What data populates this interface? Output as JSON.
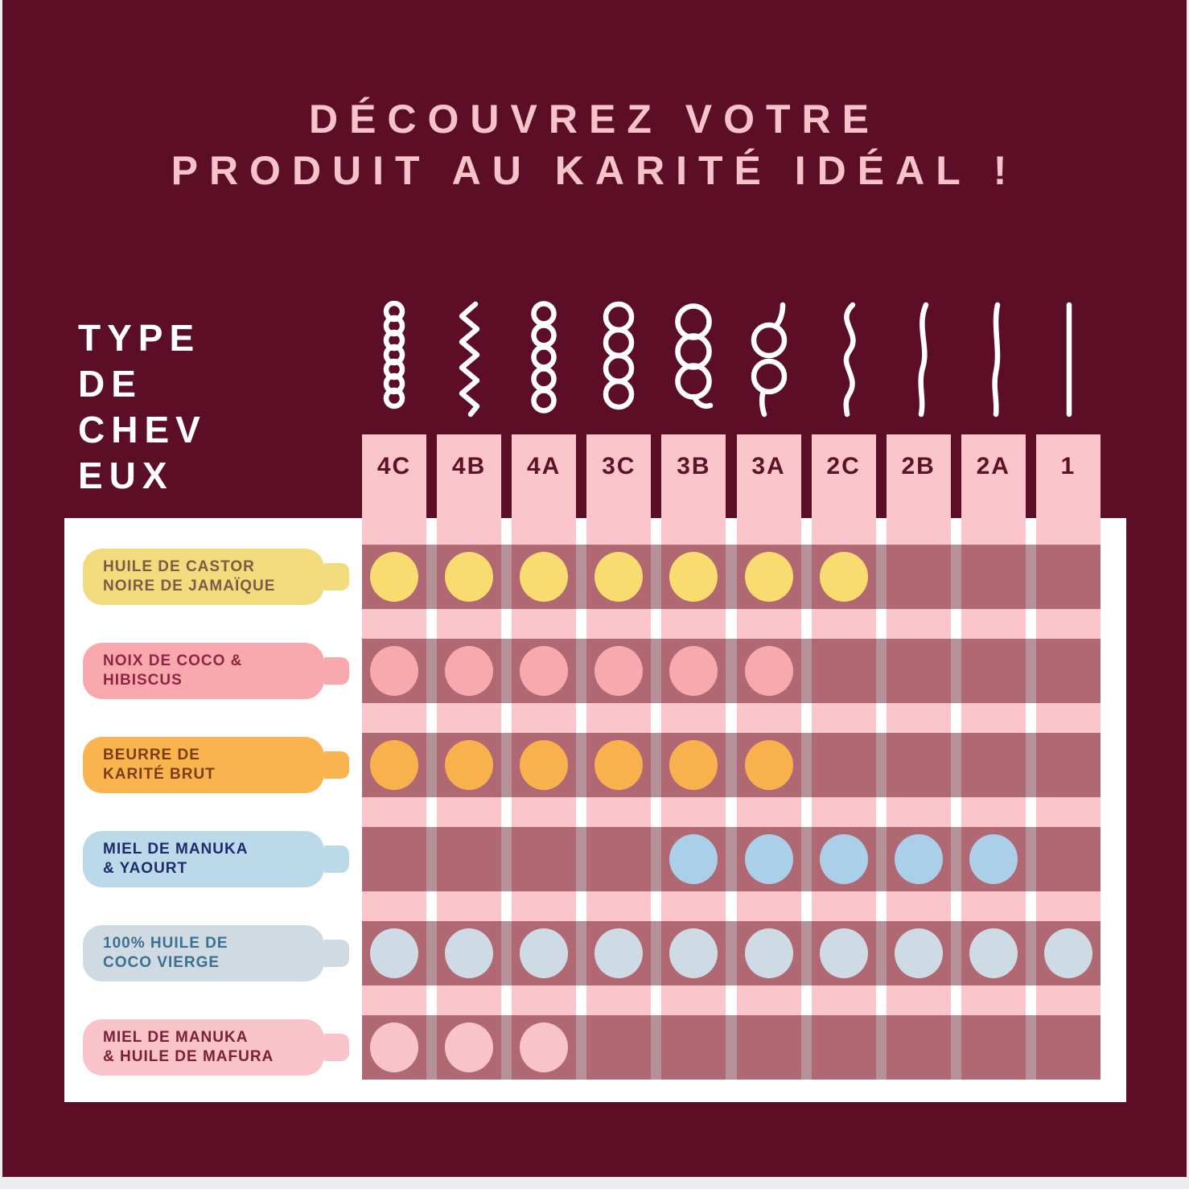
{
  "title": {
    "line1": "DÉCOUVREZ VOTRE",
    "line2": "PRODUIT AU KARITÉ IDÉAL !"
  },
  "axis_label": [
    "TYPE",
    "DE",
    "CHEV",
    "EUX"
  ],
  "columns": [
    {
      "label": "4C",
      "curl": "coil-tight"
    },
    {
      "label": "4B",
      "curl": "zigzag"
    },
    {
      "label": "4A",
      "curl": "coil-small-loops"
    },
    {
      "label": "3C",
      "curl": "curl-medium-loops"
    },
    {
      "label": "3B",
      "curl": "curl-large-loops"
    },
    {
      "label": "3A",
      "curl": "curl-loose-loops"
    },
    {
      "label": "2C",
      "curl": "wave-strong"
    },
    {
      "label": "2B",
      "curl": "wave-medium"
    },
    {
      "label": "2A",
      "curl": "wave-light"
    },
    {
      "label": "1",
      "curl": "straight"
    }
  ],
  "rows": [
    {
      "label_line1": "HUILE DE CASTOR",
      "label_line2": "NOIRE DE JAMAÏQUE",
      "colors": {
        "bottle": "#F1DB7D",
        "text": "#7D5C46",
        "dot": "#F8DC6F"
      },
      "cells": [
        1,
        1,
        1,
        1,
        1,
        1,
        1,
        0,
        0,
        0
      ]
    },
    {
      "label_line1": "NOIX DE COCO &",
      "label_line2": "HIBISCUS",
      "colors": {
        "bottle": "#F9A9AE",
        "text": "#8E2544",
        "dot": "#F7A9AD"
      },
      "cells": [
        1,
        1,
        1,
        1,
        1,
        1,
        0,
        0,
        0,
        0
      ]
    },
    {
      "label_line1": "BEURRE DE",
      "label_line2": "KARITÉ BRUT",
      "colors": {
        "bottle": "#F9B450",
        "text": "#7C3D12",
        "dot": "#F9B14E"
      },
      "cells": [
        1,
        1,
        1,
        1,
        1,
        1,
        0,
        0,
        0,
        0
      ]
    },
    {
      "label_line1": "MIEL DE MANUKA",
      "label_line2": "& YAOURT",
      "colors": {
        "bottle": "#BCD9EA",
        "text": "#202A6C",
        "dot": "#ABCFE8"
      },
      "cells": [
        0,
        0,
        0,
        0,
        1,
        1,
        1,
        1,
        1,
        0
      ]
    },
    {
      "label_line1": "100% HUILE DE",
      "label_line2": "COCO VIERGE",
      "colors": {
        "bottle": "#D0DAE3",
        "text": "#3A7090",
        "dot": "#CFDBE4"
      },
      "cells": [
        1,
        1,
        1,
        1,
        1,
        1,
        1,
        1,
        1,
        1
      ]
    },
    {
      "label_line1": "MIEL DE MANUKA",
      "label_line2": "& HUILE DE MAFURA",
      "colors": {
        "bottle": "#F9C3CA",
        "text": "#7A2039",
        "dot": "#F9C3CA"
      },
      "cells": [
        1,
        1,
        1,
        0,
        0,
        0,
        0,
        0,
        0,
        0
      ]
    }
  ],
  "colors": {
    "background": "#5C0E27",
    "page_edge": "#EDEDEF",
    "title_text": "#F6C3CB",
    "axis_text": "#FFFFFF",
    "card": "#FFFFFF",
    "column_pink": "#FAC6CC",
    "column_label_text": "#5C1228",
    "band_over_white": "#B79199",
    "band_over_pink": "#B06873",
    "curl_icon": "#FFFFFF"
  },
  "chart_data": {
    "type": "table",
    "title": "DÉCOUVREZ VOTRE PRODUIT AU KARITÉ IDÉAL !",
    "x_axis_label": "TYPE DE CHEVEUX",
    "x_categories": [
      "4C",
      "4B",
      "4A",
      "3C",
      "3B",
      "3A",
      "2C",
      "2B",
      "2A",
      "1"
    ],
    "legend_position": "none",
    "grid": true,
    "rows": [
      {
        "product": "HUILE DE CASTOR NOIRE DE JAMAÏQUE",
        "matches": [
          1,
          1,
          1,
          1,
          1,
          1,
          1,
          0,
          0,
          0
        ],
        "recommended_hair_types": [
          "4C",
          "4B",
          "4A",
          "3C",
          "3B",
          "3A",
          "2C"
        ]
      },
      {
        "product": "NOIX DE COCO & HIBISCUS",
        "matches": [
          1,
          1,
          1,
          1,
          1,
          1,
          0,
          0,
          0,
          0
        ],
        "recommended_hair_types": [
          "4C",
          "4B",
          "4A",
          "3C",
          "3B",
          "3A"
        ]
      },
      {
        "product": "BEURRE DE KARITÉ BRUT",
        "matches": [
          1,
          1,
          1,
          1,
          1,
          1,
          0,
          0,
          0,
          0
        ],
        "recommended_hair_types": [
          "4C",
          "4B",
          "4A",
          "3C",
          "3B",
          "3A"
        ]
      },
      {
        "product": "MIEL DE MANUKA & YAOURT",
        "matches": [
          0,
          0,
          0,
          0,
          1,
          1,
          1,
          1,
          1,
          0
        ],
        "recommended_hair_types": [
          "3B",
          "3A",
          "2C",
          "2B",
          "2A"
        ]
      },
      {
        "product": "100% HUILE DE COCO VIERGE",
        "matches": [
          1,
          1,
          1,
          1,
          1,
          1,
          1,
          1,
          1,
          1
        ],
        "recommended_hair_types": [
          "4C",
          "4B",
          "4A",
          "3C",
          "3B",
          "3A",
          "2C",
          "2B",
          "2A",
          "1"
        ]
      },
      {
        "product": "MIEL DE MANUKA & HUILE DE MAFURA",
        "matches": [
          1,
          1,
          1,
          0,
          0,
          0,
          0,
          0,
          0,
          0
        ],
        "recommended_hair_types": [
          "4C",
          "4B",
          "4A"
        ]
      }
    ]
  }
}
